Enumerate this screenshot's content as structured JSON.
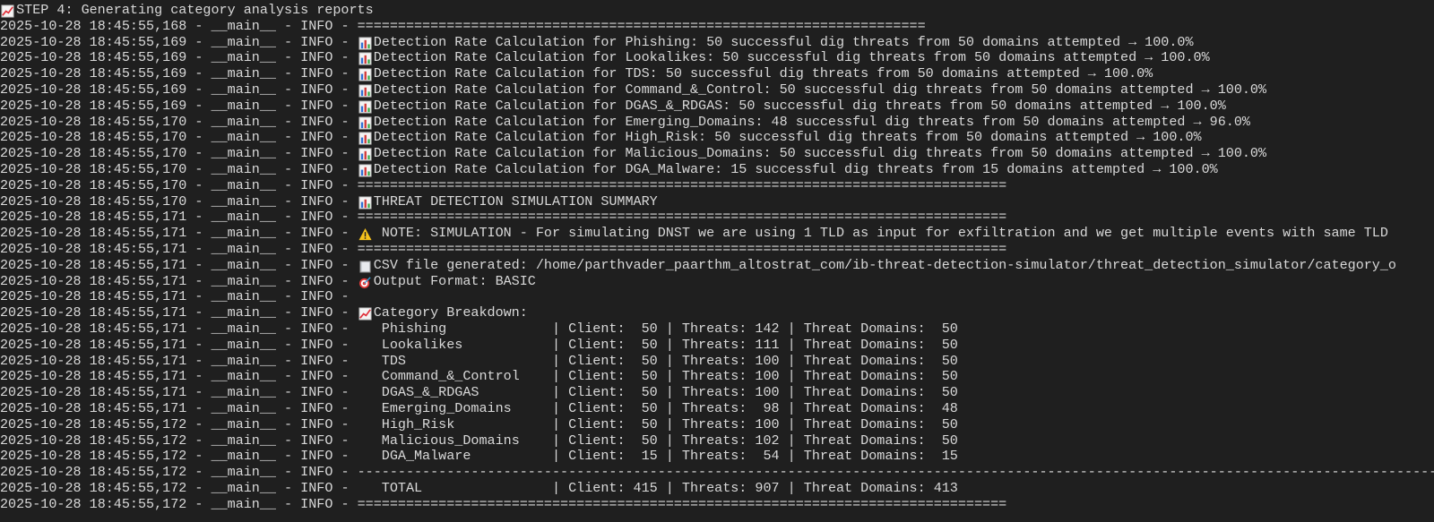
{
  "terminal": {
    "colors": {
      "background": "#1f1f1f",
      "text": "#d9d9d9"
    },
    "lines": [
      {
        "icon": "chart-increasing-icon",
        "msg": "STEP 4: Generating category analysis reports"
      },
      {
        "ts": "2025-10-28 18:45:55,168",
        "logger": "__main__",
        "level": "INFO",
        "msg": "======================================================================"
      },
      {
        "ts": "2025-10-28 18:45:55,169",
        "logger": "__main__",
        "level": "INFO",
        "icon": "bar-chart-icon",
        "msg": "Detection Rate Calculation for Phishing: 50 successful dig threats from 50 domains attempted → 100.0%"
      },
      {
        "ts": "2025-10-28 18:45:55,169",
        "logger": "__main__",
        "level": "INFO",
        "icon": "bar-chart-icon",
        "msg": "Detection Rate Calculation for Lookalikes: 50 successful dig threats from 50 domains attempted → 100.0%"
      },
      {
        "ts": "2025-10-28 18:45:55,169",
        "logger": "__main__",
        "level": "INFO",
        "icon": "bar-chart-icon",
        "msg": "Detection Rate Calculation for TDS: 50 successful dig threats from 50 domains attempted → 100.0%"
      },
      {
        "ts": "2025-10-28 18:45:55,169",
        "logger": "__main__",
        "level": "INFO",
        "icon": "bar-chart-icon",
        "msg": "Detection Rate Calculation for Command_&_Control: 50 successful dig threats from 50 domains attempted → 100.0%"
      },
      {
        "ts": "2025-10-28 18:45:55,169",
        "logger": "__main__",
        "level": "INFO",
        "icon": "bar-chart-icon",
        "msg": "Detection Rate Calculation for DGAS_&_RDGAS: 50 successful dig threats from 50 domains attempted → 100.0%"
      },
      {
        "ts": "2025-10-28 18:45:55,170",
        "logger": "__main__",
        "level": "INFO",
        "icon": "bar-chart-icon",
        "msg": "Detection Rate Calculation for Emerging_Domains: 48 successful dig threats from 50 domains attempted → 96.0%"
      },
      {
        "ts": "2025-10-28 18:45:55,170",
        "logger": "__main__",
        "level": "INFO",
        "icon": "bar-chart-icon",
        "msg": "Detection Rate Calculation for High_Risk: 50 successful dig threats from 50 domains attempted → 100.0%"
      },
      {
        "ts": "2025-10-28 18:45:55,170",
        "logger": "__main__",
        "level": "INFO",
        "icon": "bar-chart-icon",
        "msg": "Detection Rate Calculation for Malicious_Domains: 50 successful dig threats from 50 domains attempted → 100.0%"
      },
      {
        "ts": "2025-10-28 18:45:55,170",
        "logger": "__main__",
        "level": "INFO",
        "icon": "bar-chart-icon",
        "msg": "Detection Rate Calculation for DGA_Malware: 15 successful dig threats from 15 domains attempted → 100.0%"
      },
      {
        "ts": "2025-10-28 18:45:55,170",
        "logger": "__main__",
        "level": "INFO",
        "msg": "================================================================================"
      },
      {
        "ts": "2025-10-28 18:45:55,170",
        "logger": "__main__",
        "level": "INFO",
        "icon": "bar-chart-icon",
        "msg": "THREAT DETECTION SIMULATION SUMMARY"
      },
      {
        "ts": "2025-10-28 18:45:55,171",
        "logger": "__main__",
        "level": "INFO",
        "msg": "================================================================================"
      },
      {
        "ts": "2025-10-28 18:45:55,171",
        "logger": "__main__",
        "level": "INFO",
        "icon": "warning-icon",
        "msg": " NOTE: SIMULATION - For simulating DNST we are using 1 TLD as input for exfiltration and we get multiple events with same TLD"
      },
      {
        "ts": "2025-10-28 18:45:55,171",
        "logger": "__main__",
        "level": "INFO",
        "msg": "================================================================================"
      },
      {
        "ts": "2025-10-28 18:45:55,171",
        "logger": "__main__",
        "level": "INFO",
        "icon": "folder-icon",
        "msg": "CSV file generated: /home/parthvader_paarthm_altostrat_com/ib-threat-detection-simulator/threat_detection_simulator/category_o"
      },
      {
        "ts": "2025-10-28 18:45:55,171",
        "logger": "__main__",
        "level": "INFO",
        "icon": "target-icon",
        "msg": "Output Format: BASIC"
      },
      {
        "ts": "2025-10-28 18:45:55,171",
        "logger": "__main__",
        "level": "INFO",
        "msg": ""
      },
      {
        "ts": "2025-10-28 18:45:55,171",
        "logger": "__main__",
        "level": "INFO",
        "icon": "chart-increasing-icon",
        "msg": "Category Breakdown:"
      },
      {
        "ts": "2025-10-28 18:45:55,171",
        "logger": "__main__",
        "level": "INFO",
        "msg": "   Phishing             | Client:  50 | Threats: 142 | Threat Domains:  50"
      },
      {
        "ts": "2025-10-28 18:45:55,171",
        "logger": "__main__",
        "level": "INFO",
        "msg": "   Lookalikes           | Client:  50 | Threats: 111 | Threat Domains:  50"
      },
      {
        "ts": "2025-10-28 18:45:55,171",
        "logger": "__main__",
        "level": "INFO",
        "msg": "   TDS                  | Client:  50 | Threats: 100 | Threat Domains:  50"
      },
      {
        "ts": "2025-10-28 18:45:55,171",
        "logger": "__main__",
        "level": "INFO",
        "msg": "   Command_&_Control    | Client:  50 | Threats: 100 | Threat Domains:  50"
      },
      {
        "ts": "2025-10-28 18:45:55,171",
        "logger": "__main__",
        "level": "INFO",
        "msg": "   DGAS_&_RDGAS         | Client:  50 | Threats: 100 | Threat Domains:  50"
      },
      {
        "ts": "2025-10-28 18:45:55,171",
        "logger": "__main__",
        "level": "INFO",
        "msg": "   Emerging_Domains     | Client:  50 | Threats:  98 | Threat Domains:  48"
      },
      {
        "ts": "2025-10-28 18:45:55,172",
        "logger": "__main__",
        "level": "INFO",
        "msg": "   High_Risk            | Client:  50 | Threats: 100 | Threat Domains:  50"
      },
      {
        "ts": "2025-10-28 18:45:55,172",
        "logger": "__main__",
        "level": "INFO",
        "msg": "   Malicious_Domains    | Client:  50 | Threats: 102 | Threat Domains:  50"
      },
      {
        "ts": "2025-10-28 18:45:55,172",
        "logger": "__main__",
        "level": "INFO",
        "msg": "   DGA_Malware          | Client:  15 | Threats:  54 | Threat Domains:  15"
      },
      {
        "ts": "2025-10-28 18:45:55,172",
        "logger": "__main__",
        "level": "INFO",
        "msg": "--------------------------------------------------------------------------------------------------------------------------------------"
      },
      {
        "ts": "2025-10-28 18:45:55,172",
        "logger": "__main__",
        "level": "INFO",
        "msg": "   TOTAL                | Client: 415 | Threats: 907 | Threat Domains: 413"
      },
      {
        "ts": "2025-10-28 18:45:55,172",
        "logger": "__main__",
        "level": "INFO",
        "msg": "================================================================================"
      }
    ]
  }
}
